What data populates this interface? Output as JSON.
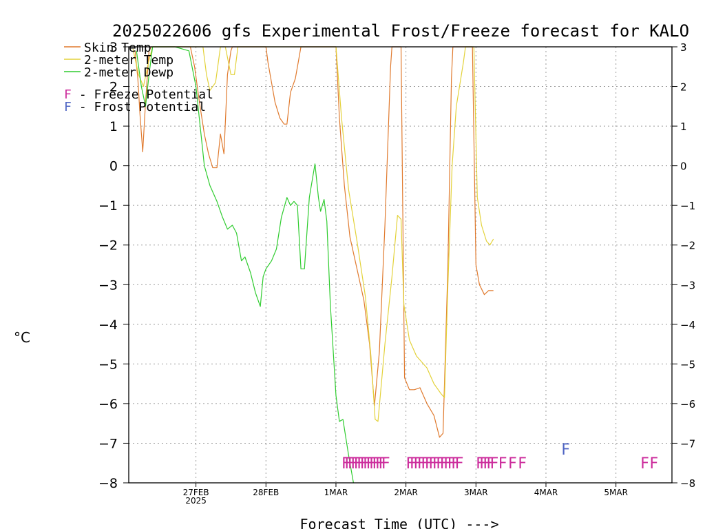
{
  "chart_data": {
    "type": "line",
    "title": "2025022606 gfs Experimental Frost/Freeze forecast for KALO",
    "xlabel": "Forecast Time (UTC) --->",
    "ylabel": "°C",
    "ylim": [
      -8,
      3
    ],
    "yticks": [
      "3",
      "2",
      "1",
      "0",
      "-1",
      "-2",
      "-3",
      "-4",
      "-5",
      "-6",
      "-7",
      "-8"
    ],
    "xlim": [
      26.04,
      33.8
    ],
    "xticks": [
      {
        "x": 27,
        "label": "27FEB",
        "sub": "2025"
      },
      {
        "x": 28,
        "label": "28FEB",
        "sub": ""
      },
      {
        "x": 29,
        "label": "1MAR",
        "sub": ""
      },
      {
        "x": 30,
        "label": "2MAR",
        "sub": ""
      },
      {
        "x": 31,
        "label": "3MAR",
        "sub": ""
      },
      {
        "x": 32,
        "label": "4MAR",
        "sub": ""
      },
      {
        "x": 33,
        "label": "5MAR",
        "sub": ""
      }
    ],
    "grid": true,
    "legend": [
      {
        "name": "Skin Temp",
        "color": "#e07a2e"
      },
      {
        "name": "2-meter Temp",
        "color": "#e3d23a"
      },
      {
        "name": "2-meter Dewp",
        "color": "#2ecc2e"
      }
    ],
    "legend_markers": [
      {
        "letter": "F",
        "text": " - Freeze Potential",
        "color": "#cc2c9c"
      },
      {
        "letter": "F",
        "text": " - Frost Potential",
        "color": "#5066c4"
      }
    ],
    "series": [
      {
        "name": "Skin Temp",
        "color": "#e07a2e",
        "points": [
          [
            26.13,
            2.9
          ],
          [
            26.17,
            2.2
          ],
          [
            26.2,
            1.3
          ],
          [
            26.24,
            0.35
          ],
          [
            26.28,
            1.6
          ],
          [
            26.33,
            2.9
          ],
          [
            26.36,
            3
          ],
          [
            26.92,
            3
          ],
          [
            26.98,
            2.5
          ],
          [
            27.05,
            1.6
          ],
          [
            27.12,
            0.8
          ],
          [
            27.18,
            0.3
          ],
          [
            27.24,
            -0.05
          ],
          [
            27.3,
            -0.05
          ],
          [
            27.35,
            0.8
          ],
          [
            27.4,
            0.3
          ],
          [
            27.45,
            2.3
          ],
          [
            27.5,
            2.9
          ],
          [
            27.52,
            3
          ],
          [
            28.0,
            3
          ],
          [
            28.03,
            2.6
          ],
          [
            28.08,
            2.1
          ],
          [
            28.13,
            1.6
          ],
          [
            28.2,
            1.2
          ],
          [
            28.26,
            1.05
          ],
          [
            28.3,
            1.05
          ],
          [
            28.35,
            1.85
          ],
          [
            28.42,
            2.2
          ],
          [
            28.48,
            2.8
          ],
          [
            28.5,
            3
          ],
          [
            29.0,
            3
          ],
          [
            29.05,
            1.2
          ],
          [
            29.12,
            -0.5
          ],
          [
            29.2,
            -1.8
          ],
          [
            29.3,
            -2.6
          ],
          [
            29.4,
            -3.4
          ],
          [
            29.48,
            -4.5
          ],
          [
            29.55,
            -6.05
          ],
          [
            29.62,
            -4.7
          ],
          [
            29.7,
            -1.5
          ],
          [
            29.78,
            2.5
          ],
          [
            29.8,
            3
          ],
          [
            29.93,
            3
          ],
          [
            29.98,
            -5.35
          ],
          [
            30.05,
            -5.65
          ],
          [
            30.12,
            -5.65
          ],
          [
            30.2,
            -5.6
          ],
          [
            30.3,
            -6.0
          ],
          [
            30.4,
            -6.3
          ],
          [
            30.48,
            -6.85
          ],
          [
            30.53,
            -6.75
          ],
          [
            30.6,
            -2.5
          ],
          [
            30.65,
            2.2
          ],
          [
            30.67,
            3
          ],
          [
            30.95,
            3
          ],
          [
            31.0,
            -2.5
          ],
          [
            31.05,
            -3.0
          ],
          [
            31.12,
            -3.25
          ],
          [
            31.18,
            -3.15
          ],
          [
            31.25,
            -3.15
          ]
        ]
      },
      {
        "name": "2-meter Temp",
        "color": "#e3d23a",
        "points": [
          [
            26.1,
            2.95
          ],
          [
            26.18,
            2.3
          ],
          [
            26.25,
            2.0
          ],
          [
            26.32,
            2.6
          ],
          [
            26.38,
            3
          ],
          [
            27.1,
            3
          ],
          [
            27.15,
            2.3
          ],
          [
            27.2,
            1.9
          ],
          [
            27.28,
            2.1
          ],
          [
            27.35,
            3
          ],
          [
            27.42,
            3
          ],
          [
            27.5,
            2.3
          ],
          [
            27.55,
            2.3
          ],
          [
            27.6,
            3
          ],
          [
            28.45,
            3
          ],
          [
            29.0,
            3
          ],
          [
            29.08,
            1.2
          ],
          [
            29.18,
            -0.6
          ],
          [
            29.3,
            -1.9
          ],
          [
            29.42,
            -3.3
          ],
          [
            29.5,
            -4.8
          ],
          [
            29.56,
            -6.4
          ],
          [
            29.6,
            -6.45
          ],
          [
            29.7,
            -4.5
          ],
          [
            29.8,
            -2.8
          ],
          [
            29.88,
            -1.25
          ],
          [
            29.93,
            -1.35
          ],
          [
            29.97,
            -3.5
          ],
          [
            30.05,
            -4.4
          ],
          [
            30.15,
            -4.8
          ],
          [
            30.3,
            -5.1
          ],
          [
            30.4,
            -5.5
          ],
          [
            30.5,
            -5.75
          ],
          [
            30.55,
            -5.85
          ],
          [
            30.6,
            -3.0
          ],
          [
            30.66,
            0.0
          ],
          [
            30.72,
            1.5
          ],
          [
            30.82,
            2.6
          ],
          [
            30.85,
            3
          ],
          [
            30.97,
            3
          ],
          [
            31.02,
            -0.8
          ],
          [
            31.08,
            -1.5
          ],
          [
            31.15,
            -1.9
          ],
          [
            31.2,
            -2.0
          ],
          [
            31.25,
            -1.85
          ]
        ]
      },
      {
        "name": "2-meter Dewp",
        "color": "#2ecc2e",
        "points": [
          [
            26.15,
            2.9
          ],
          [
            26.22,
            2.0
          ],
          [
            26.28,
            1.5
          ],
          [
            26.33,
            2.3
          ],
          [
            26.38,
            3
          ],
          [
            26.7,
            3
          ],
          [
            26.8,
            2.95
          ],
          [
            26.9,
            2.9
          ],
          [
            27.0,
            2.0
          ],
          [
            27.12,
            0.0
          ],
          [
            27.2,
            -0.5
          ],
          [
            27.3,
            -0.9
          ],
          [
            27.38,
            -1.3
          ],
          [
            27.45,
            -1.6
          ],
          [
            27.52,
            -1.5
          ],
          [
            27.58,
            -1.7
          ],
          [
            27.65,
            -2.4
          ],
          [
            27.7,
            -2.3
          ],
          [
            27.78,
            -2.7
          ],
          [
            27.85,
            -3.2
          ],
          [
            27.92,
            -3.55
          ],
          [
            27.96,
            -2.8
          ],
          [
            28.0,
            -2.6
          ],
          [
            28.08,
            -2.4
          ],
          [
            28.15,
            -2.1
          ],
          [
            28.22,
            -1.3
          ],
          [
            28.3,
            -0.8
          ],
          [
            28.35,
            -1.0
          ],
          [
            28.4,
            -0.9
          ],
          [
            28.45,
            -1.0
          ],
          [
            28.5,
            -2.6
          ],
          [
            28.55,
            -2.6
          ],
          [
            28.62,
            -0.8
          ],
          [
            28.7,
            0.05
          ],
          [
            28.75,
            -0.8
          ],
          [
            28.78,
            -1.15
          ],
          [
            28.83,
            -0.85
          ],
          [
            28.87,
            -1.4
          ],
          [
            28.92,
            -3.5
          ],
          [
            29.0,
            -5.8
          ],
          [
            29.05,
            -6.45
          ],
          [
            29.1,
            -6.4
          ],
          [
            29.18,
            -7.3
          ],
          [
            29.25,
            -8.0
          ]
        ]
      }
    ],
    "marker_rows": [
      {
        "color": "#cc2c9c",
        "x_start": 29.08,
        "x_end": 29.65,
        "count": 14,
        "y": -7.5
      },
      {
        "color": "#cc2c9c",
        "x_start": 30.0,
        "x_end": 30.7,
        "count": 14,
        "y": -7.5
      },
      {
        "color": "#cc2c9c",
        "x_start": 31.0,
        "x_end": 31.2,
        "count": 5,
        "y": -7.5
      },
      {
        "color": "#cc2c9c",
        "x_start": 31.32,
        "x_end": 31.6,
        "count": 3,
        "y": -7.5
      },
      {
        "color": "#5066c4",
        "x_start": 32.22,
        "x_end": 32.22,
        "count": 1,
        "y": -7.15
      },
      {
        "color": "#cc2c9c",
        "x_start": 33.35,
        "x_end": 33.48,
        "count": 2,
        "y": -7.5
      }
    ],
    "marker_letter": "F"
  }
}
